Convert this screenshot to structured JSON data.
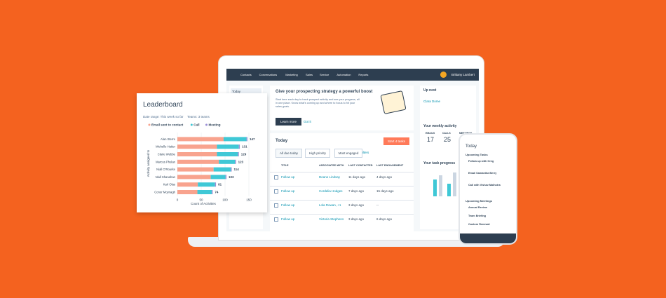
{
  "nav": {
    "items": [
      "Contacts",
      "Conversations",
      "Marketing",
      "Sales",
      "Service",
      "Automation",
      "Reports"
    ],
    "user": "Brittany Lambert"
  },
  "sidebar": {
    "item": "Today"
  },
  "banner": {
    "title": "Give your prospecting strategy a powerful boost",
    "body": "Start here each day to track prospect activity and see your progress, all in one place. Know what's coming up and where to focus to hit your sales goals.",
    "primary": "Learn more",
    "secondary": "Got it"
  },
  "today": {
    "title": "Today",
    "tabs": [
      "All due today",
      "High priority",
      "Most engaged"
    ],
    "filters": "Show filters",
    "start": "Start 4 tasks",
    "columns": [
      "TITLE",
      "ASSOCIATED WITH",
      "LAST CONTACTED",
      "LAST ENGAGEMENT"
    ],
    "rows": [
      [
        "Follow up",
        "Deane Lindsay",
        "11 days ago",
        "4 days ago"
      ],
      [
        "Follow up",
        "Cordelia Hodges",
        "7 days ago",
        "15 days ago"
      ],
      [
        "Follow up",
        "Lola Rowan, +1",
        "3 days ago",
        "--"
      ],
      [
        "Follow up",
        "Victoria Stephens",
        "3 days ago",
        "6 days ago"
      ]
    ]
  },
  "up_next": {
    "title": "Up next",
    "name": "Clara Dome"
  },
  "weekly": {
    "title": "Your weekly activity",
    "stats": [
      {
        "label": "EMAILS",
        "value": 17
      },
      {
        "label": "CALLS",
        "value": 25
      },
      {
        "label": "MEETINGS"
      }
    ]
  },
  "progress": {
    "title": "Your task progress"
  },
  "phone": {
    "title": "Today",
    "tasks_title": "Upcoming Tasks",
    "tasks": [
      "Follow up with Greg",
      "Email Samantha Berry",
      "Call with Vishav Malhotra"
    ],
    "meetings_title": "Upcoming Meetings",
    "meetings": [
      "Annual Review",
      "Team Briefing",
      "Custom Renewal"
    ]
  },
  "leaderboard": {
    "title": "Leaderboard",
    "date_range": "Date range: This week so far",
    "teams": "Teams: 3 teams",
    "y_label": "Activity assigned to",
    "x_label": "Count of Activities",
    "categories": [
      "Alan Sterre",
      "Michelle Hatter",
      "Claire Webbe",
      "Marcus Phelan",
      "Niall O'Rourke",
      "Niall Shanahan",
      "Karl Olas",
      "Conor Moynagh"
    ],
    "series": [
      {
        "name": "Email sent to contact",
        "color": "#f8a38e",
        "values": [
          97,
          83,
          83,
          87,
          76,
          70,
          43,
          42
        ]
      },
      {
        "name": "Call",
        "color": "#3fc8d6",
        "values": [
          48,
          46,
          44,
          34,
          36,
          31,
          36,
          30
        ]
      },
      {
        "name": "Meeting",
        "color": "#9a8fd6",
        "values": [
          2,
          2,
          2,
          2,
          2,
          2,
          2,
          2
        ]
      }
    ],
    "totals": [
      147,
      131,
      129,
      123,
      114,
      103,
      81,
      74
    ],
    "xlim": [
      0,
      150
    ],
    "xticks": [
      0,
      50,
      100,
      150
    ]
  }
}
